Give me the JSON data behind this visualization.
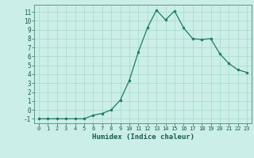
{
  "x": [
    0,
    1,
    2,
    3,
    4,
    5,
    6,
    7,
    8,
    9,
    10,
    11,
    12,
    13,
    14,
    15,
    16,
    17,
    18,
    19,
    20,
    21,
    22,
    23
  ],
  "y": [
    -1,
    -1,
    -1,
    -1,
    -1,
    -1,
    -0.6,
    -0.4,
    0.0,
    1.1,
    3.3,
    6.5,
    9.2,
    11.2,
    10.1,
    11.1,
    9.2,
    8.0,
    7.9,
    8.0,
    6.3,
    5.2,
    4.5,
    4.2
  ],
  "line_color": "#1f7a68",
  "marker": "o",
  "marker_size": 2.0,
  "bg_color": "#cceee8",
  "grid_color": "#aaddcc",
  "xlabel": "Humidex (Indice chaleur)",
  "xlim": [
    -0.5,
    23.5
  ],
  "ylim": [
    -1.5,
    11.8
  ],
  "xticks": [
    0,
    1,
    2,
    3,
    4,
    5,
    6,
    7,
    8,
    9,
    10,
    11,
    12,
    13,
    14,
    15,
    16,
    17,
    18,
    19,
    20,
    21,
    22,
    23
  ],
  "yticks": [
    -1,
    0,
    1,
    2,
    3,
    4,
    5,
    6,
    7,
    8,
    9,
    10,
    11
  ]
}
